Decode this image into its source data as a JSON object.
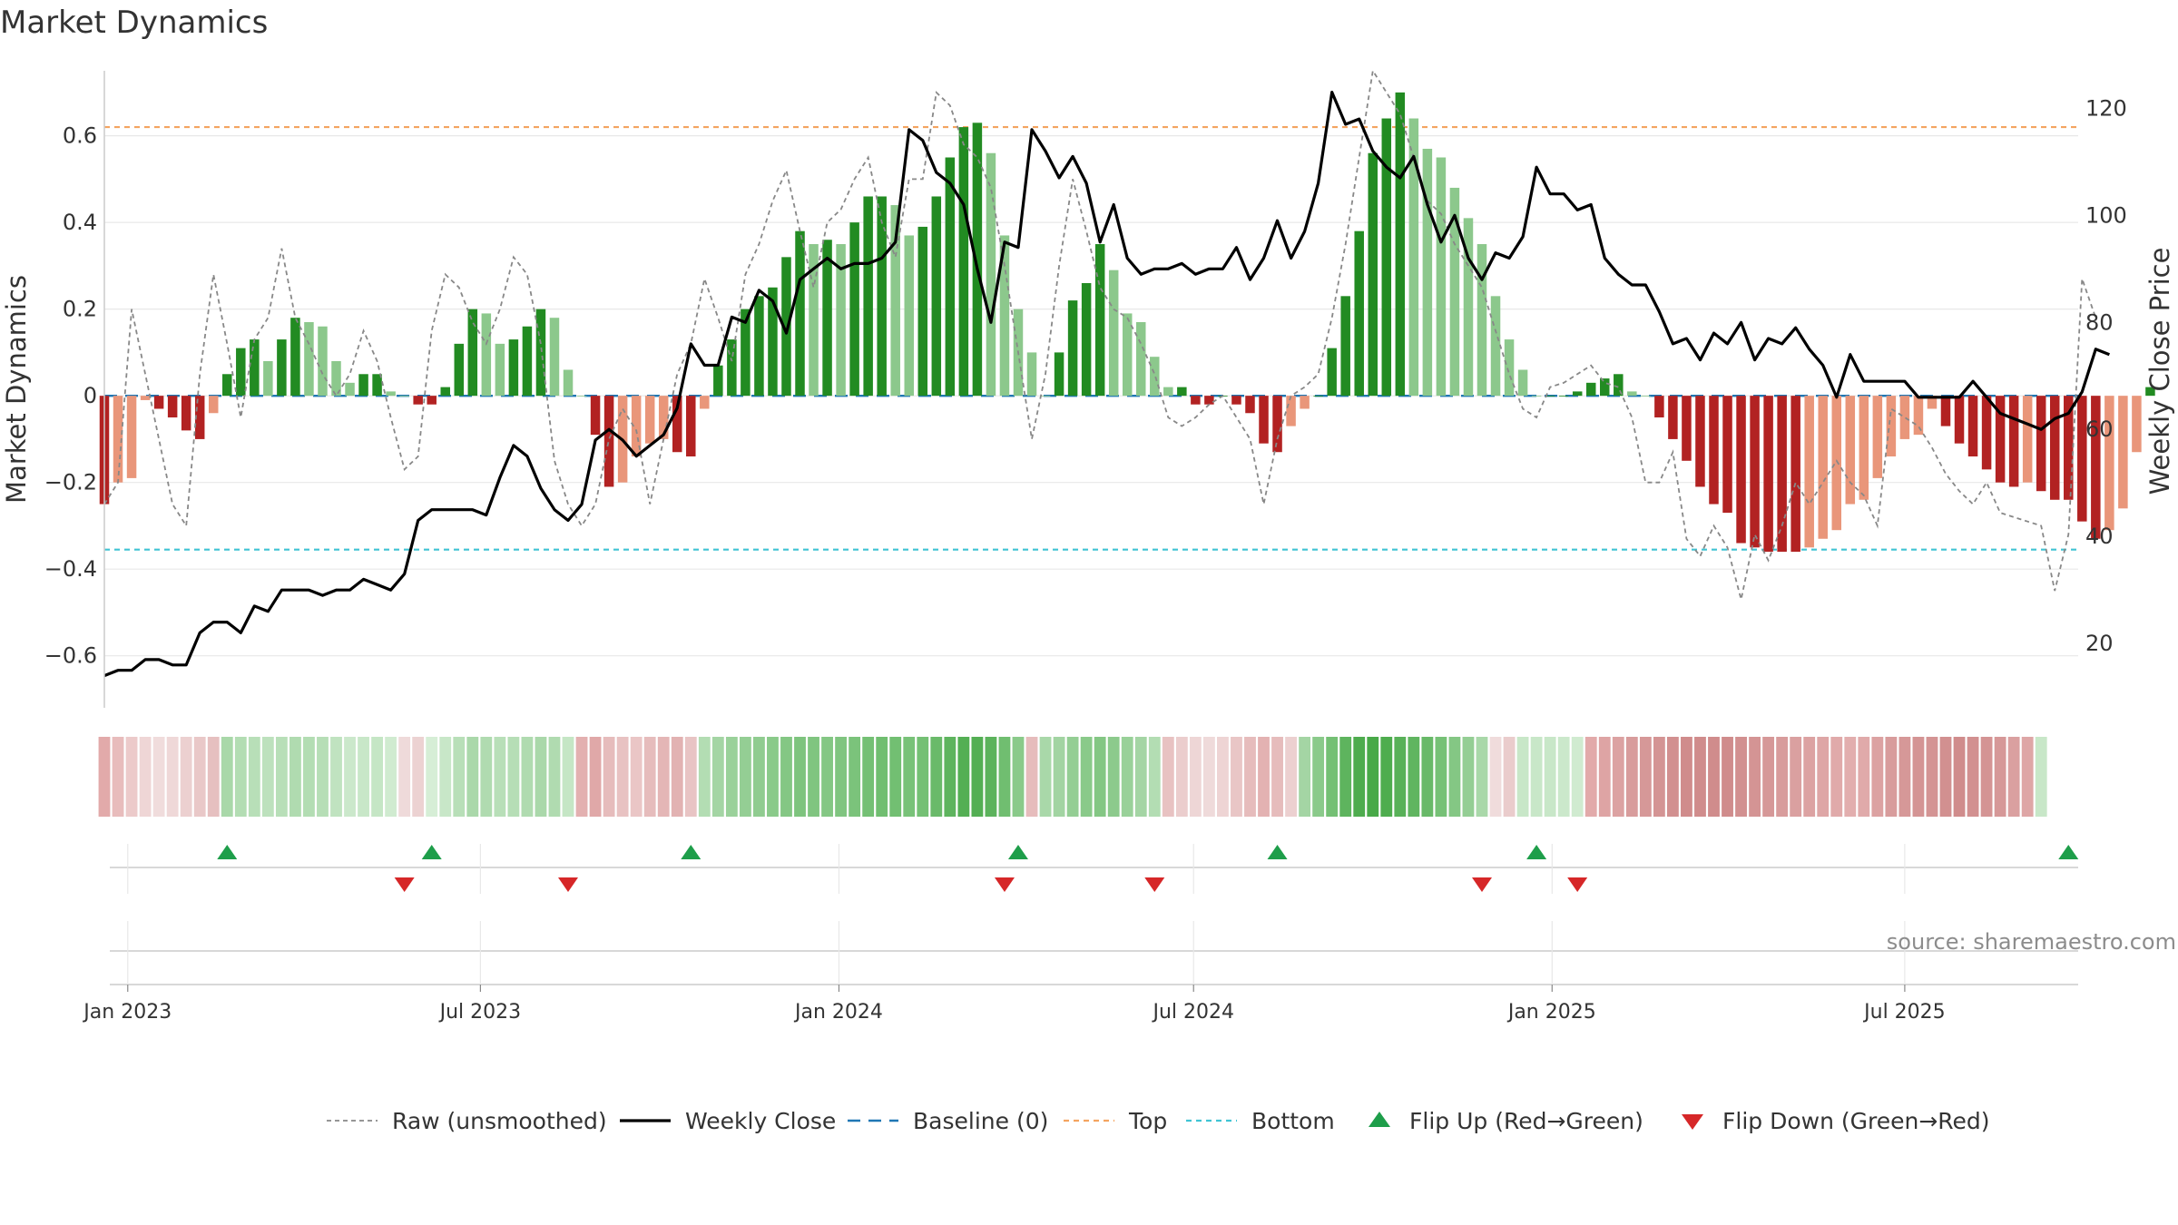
{
  "chart_data": {
    "type": "bar",
    "title": "Market Dynamics",
    "ylabel_left": "Market Dynamics",
    "ylabel_right": "Weekly Close Price",
    "ylim_left": [
      -0.72,
      0.75
    ],
    "ylim_right": [
      8,
      127
    ],
    "yticks_left": [
      -0.6,
      -0.4,
      -0.2,
      0,
      0.2,
      0.4,
      0.6
    ],
    "yticks_left_labels": [
      "−0.6",
      "−0.4",
      "−0.2",
      "0",
      "0.2",
      "0.4",
      "0.6"
    ],
    "yticks_right": [
      20,
      40,
      60,
      80,
      100,
      120
    ],
    "x_start": "2022-12-20",
    "x_end": "2025-09-28",
    "xticks": [
      {
        "date": "2023-01-01",
        "label": "Jan 2023"
      },
      {
        "date": "2023-07-01",
        "label": "Jul 2023"
      },
      {
        "date": "2024-01-01",
        "label": "Jan 2024"
      },
      {
        "date": "2024-07-01",
        "label": "Jul 2024"
      },
      {
        "date": "2025-01-01",
        "label": "Jan 2025"
      },
      {
        "date": "2025-07-01",
        "label": "Jul 2025"
      }
    ],
    "first_week": "2022-12-20",
    "week_days": 7,
    "grid": true,
    "top_level": 0.62,
    "bottom_level": -0.355,
    "baseline": 0,
    "bar_values": [
      -0.25,
      -0.2,
      -0.19,
      -0.01,
      -0.03,
      -0.05,
      -0.08,
      -0.1,
      -0.04,
      0.05,
      0.11,
      0.13,
      0.08,
      0.13,
      0.18,
      0.17,
      0.16,
      0.08,
      0.03,
      0.05,
      0.05,
      0.01,
      0,
      -0.02,
      -0.02,
      0.02,
      0.12,
      0.2,
      0.19,
      0.12,
      0.13,
      0.16,
      0.2,
      0.18,
      0.06,
      0,
      -0.09,
      -0.21,
      -0.2,
      -0.14,
      -0.11,
      -0.1,
      -0.13,
      -0.14,
      -0.03,
      0.07,
      0.13,
      0.2,
      0.23,
      0.25,
      0.32,
      0.38,
      0.35,
      0.36,
      0.35,
      0.4,
      0.46,
      0.46,
      0.44,
      0.37,
      0.39,
      0.46,
      0.55,
      0.62,
      0.63,
      0.56,
      0.37,
      0.2,
      0.1,
      0,
      0.1,
      0.22,
      0.26,
      0.35,
      0.29,
      0.19,
      0.17,
      0.09,
      0.02,
      0.02,
      -0.02,
      -0.02,
      0,
      -0.02,
      -0.04,
      -0.11,
      -0.13,
      -0.07,
      -0.03,
      0,
      0.11,
      0.23,
      0.38,
      0.56,
      0.64,
      0.7,
      0.64,
      0.57,
      0.55,
      0.48,
      0.41,
      0.35,
      0.23,
      0.13,
      0.06,
      0,
      0,
      0,
      0.01,
      0.03,
      0.04,
      0.05,
      0.01,
      0,
      -0.05,
      -0.1,
      -0.15,
      -0.21,
      -0.25,
      -0.27,
      -0.34,
      -0.35,
      -0.36,
      -0.36,
      -0.36,
      -0.35,
      -0.33,
      -0.31,
      -0.25,
      -0.24,
      -0.19,
      -0.14,
      -0.1,
      -0.09,
      -0.03,
      -0.07,
      -0.11,
      -0.14,
      -0.17,
      -0.2,
      -0.21,
      -0.2,
      -0.22,
      -0.24,
      -0.24,
      -0.29,
      -0.33,
      -0.31,
      -0.26,
      -0.13,
      0.02
    ],
    "raw_values": [
      -0.25,
      -0.2,
      0.2,
      0.05,
      -0.1,
      -0.25,
      -0.3,
      0.05,
      0.28,
      0.12,
      -0.05,
      0.13,
      0.18,
      0.34,
      0.18,
      0.12,
      0.05,
      0.0,
      0.05,
      0.15,
      0.08,
      -0.05,
      -0.17,
      -0.14,
      0.15,
      0.28,
      0.25,
      0.17,
      0.12,
      0.2,
      0.32,
      0.28,
      0.12,
      -0.15,
      -0.25,
      -0.3,
      -0.25,
      -0.1,
      -0.03,
      -0.08,
      -0.25,
      -0.1,
      0.05,
      0.12,
      0.27,
      0.18,
      0.08,
      0.28,
      0.35,
      0.45,
      0.52,
      0.38,
      0.25,
      0.4,
      0.43,
      0.5,
      0.55,
      0.4,
      0.32,
      0.5,
      0.5,
      0.7,
      0.67,
      0.58,
      0.55,
      0.48,
      0.3,
      0.1,
      -0.1,
      0.05,
      0.3,
      0.5,
      0.38,
      0.25,
      0.2,
      0.18,
      0.12,
      0.05,
      -0.05,
      -0.07,
      -0.05,
      -0.02,
      0.0,
      -0.05,
      -0.1,
      -0.25,
      -0.1,
      0.0,
      0.02,
      0.05,
      0.18,
      0.35,
      0.55,
      0.75,
      0.7,
      0.65,
      0.55,
      0.45,
      0.42,
      0.35,
      0.3,
      0.25,
      0.15,
      0.05,
      -0.03,
      -0.05,
      0.02,
      0.03,
      0.05,
      0.07,
      0.03,
      0.02,
      -0.05,
      -0.2,
      -0.2,
      -0.13,
      -0.33,
      -0.37,
      -0.3,
      -0.35,
      -0.47,
      -0.32,
      -0.38,
      -0.3,
      -0.2,
      -0.25,
      -0.2,
      -0.15,
      -0.2,
      -0.23,
      -0.3,
      -0.03,
      -0.05,
      -0.07,
      -0.12,
      -0.18,
      -0.22,
      -0.25,
      -0.2,
      -0.27,
      -0.28,
      -0.29,
      -0.3,
      -0.45,
      -0.32,
      0.27,
      0.18
    ],
    "price_values": [
      14,
      15,
      15,
      17,
      17,
      16,
      16,
      22,
      24,
      24,
      22,
      27,
      26,
      30,
      30,
      30,
      29,
      30,
      30,
      32,
      31,
      30,
      33,
      43,
      45,
      45,
      45,
      45,
      44,
      51,
      57,
      55,
      49,
      45,
      43,
      46,
      58,
      60,
      58,
      55,
      57,
      59,
      64,
      76,
      72,
      72,
      81,
      80,
      86,
      84,
      78,
      88,
      90,
      92,
      90,
      91,
      91,
      92,
      95,
      116,
      114,
      108,
      106,
      102,
      90,
      80,
      95,
      94,
      116,
      112,
      107,
      111,
      106,
      95,
      102,
      92,
      89,
      90,
      90,
      91,
      89,
      90,
      90,
      94,
      88,
      92,
      99,
      92,
      97,
      106,
      123,
      117,
      118,
      112,
      109,
      107,
      111,
      102,
      95,
      100,
      92,
      88,
      93,
      92,
      96,
      109,
      104,
      104,
      101,
      102,
      92,
      89,
      87,
      87,
      82,
      76,
      77,
      73,
      78,
      76,
      80,
      73,
      77,
      76,
      79,
      75,
      72,
      66,
      74,
      69,
      69,
      69,
      69,
      66,
      66,
      66,
      66,
      69,
      66,
      63,
      62,
      61,
      60,
      62,
      63,
      67,
      75,
      74
    ],
    "strip_colors": [
      "#e2aaaa",
      "#e8bcbc",
      "#eccaca",
      "#efd6d6",
      "#f0dcdc",
      "#efd8d8",
      "#ecd0d0",
      "#e9c8c8",
      "#e6c0c0",
      "#a9d8a9",
      "#b3ddb3",
      "#b8dfb8",
      "#bde1bd",
      "#b8dfb8",
      "#b0dbb0",
      "#b3ddb3",
      "#b6deb6",
      "#c0e3c0",
      "#cbe8cb",
      "#c8e7c8",
      "#c5e6c5",
      "#d0ebd0",
      "#efdada",
      "#ecd2d2",
      "#d6eed6",
      "#c8e7c8",
      "#b8dfb8",
      "#aad8aa",
      "#b0dbb0",
      "#b8dfb8",
      "#b6deb6",
      "#b0dbb0",
      "#aad8aa",
      "#b0dbb0",
      "#c5e6c5",
      "#e3b0b0",
      "#e0a8a8",
      "#e6bcbc",
      "#e8c2c2",
      "#eac6c6",
      "#e6bcbc",
      "#e4b6b6",
      "#e2b2b2",
      "#e8c4c4",
      "#b3ddb3",
      "#a4d5a4",
      "#9ad19a",
      "#94ce94",
      "#90cc90",
      "#8aca8a",
      "#84c784",
      "#7ec47e",
      "#80c580",
      "#84c784",
      "#80c580",
      "#7bc37b",
      "#74c074",
      "#70be70",
      "#72bf72",
      "#78c278",
      "#74c074",
      "#6aba6a",
      "#5eb45e",
      "#54af54",
      "#54af54",
      "#5cb35c",
      "#70be70",
      "#8aca8a",
      "#e6bcbc",
      "#a9d8a9",
      "#a2d4a2",
      "#94ce94",
      "#8aca8a",
      "#84c784",
      "#8cca8c",
      "#99d199",
      "#a4d5a4",
      "#b3ddb3",
      "#e8c2c2",
      "#ebcdcd",
      "#eed6d6",
      "#efdada",
      "#eed4d4",
      "#e9c6c6",
      "#e6bcbc",
      "#e3b2b2",
      "#e6bcbc",
      "#ecd0d0",
      "#a4d5a4",
      "#8aca8a",
      "#74c074",
      "#5eb45e",
      "#4eac4e",
      "#48a948",
      "#4ead4e",
      "#58b158",
      "#60b560",
      "#68b968",
      "#76c176",
      "#84c784",
      "#94ce94",
      "#a9d8a9",
      "#f0dcdc",
      "#eacccc",
      "#c8e7c8",
      "#c8e7c8",
      "#c8e7c8",
      "#cbe8cb",
      "#d0ebd0",
      "#e2aaaa",
      "#dea4a4",
      "#dca2a2",
      "#d89c9c",
      "#d69898",
      "#d49494",
      "#d29090",
      "#d08c8c",
      "#d08c8c",
      "#d08c8c",
      "#d08c8c",
      "#d29090",
      "#d49494",
      "#d69898",
      "#d89c9c",
      "#daa0a0",
      "#dca2a2",
      "#dea6a6",
      "#e0aaaa",
      "#e2aeae",
      "#e0aaaa",
      "#dca2a2",
      "#d89c9c",
      "#d69898",
      "#d49494",
      "#d49494",
      "#d29090",
      "#d08c8c",
      "#d29090",
      "#d49494",
      "#d69898",
      "#daa0a0",
      "#dea6a6",
      "#c8e7c8"
    ],
    "flip_up_weeks": [
      9,
      24,
      43,
      67,
      86,
      105,
      144
    ],
    "flip_down_weeks": [
      22,
      34,
      66,
      77,
      101,
      108
    ],
    "legend": [
      "Raw (unsmoothed)",
      "Weekly Close",
      "Baseline (0)",
      "Top",
      "Bottom",
      "Flip Up (Red→Green)",
      "Flip Down (Green→Red)"
    ],
    "colors": {
      "pos_strong": "#228b22",
      "pos_weak": "#8cc88c",
      "neg_strong": "#b22222",
      "neg_weak": "#e9967a",
      "raw_line": "#888888",
      "price_line": "#000000",
      "baseline": "#1f77b4",
      "top": "#f4a460",
      "bottom": "#40c4d4",
      "flip_up": "#1e9e4a",
      "flip_down": "#d62728",
      "grid": "#e8e8e8"
    }
  },
  "source_note": "source: sharemaestro.com"
}
